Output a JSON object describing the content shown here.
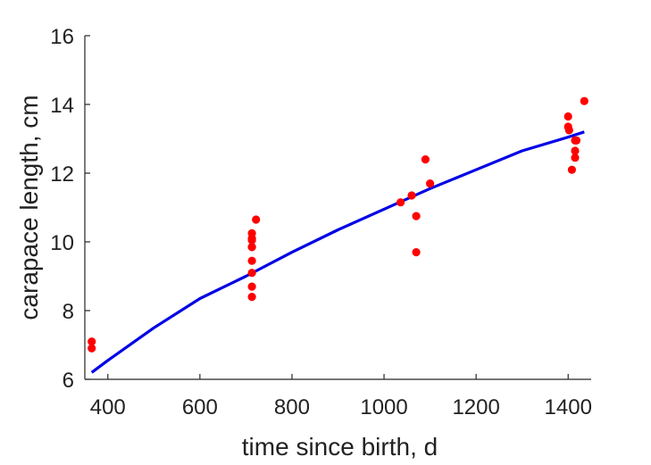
{
  "chart_data": {
    "type": "scatter",
    "title": "",
    "xlabel": "time since birth, d",
    "ylabel": "carapace length, cm",
    "xlim": [
      350,
      1450
    ],
    "ylim": [
      6,
      16
    ],
    "xticks": [
      400,
      600,
      800,
      1000,
      1200,
      1400
    ],
    "yticks": [
      6,
      8,
      10,
      12,
      14,
      16
    ],
    "grid": false,
    "colors": {
      "points": "#ff0000",
      "fit_line": "#0000e6",
      "axes": "#262626"
    },
    "series": [
      {
        "kind": "points",
        "x": [
          365,
          365,
          713,
          713,
          713,
          713,
          713,
          713,
          713,
          713,
          713,
          722,
          1036,
          1060,
          1070,
          1070,
          1090,
          1100,
          1400,
          1400,
          1402,
          1408,
          1415,
          1415,
          1415,
          1418,
          1435
        ],
        "y": [
          7.1,
          6.9,
          10.25,
          10.1,
          9.85,
          9.45,
          9.1,
          8.7,
          8.4,
          10.05,
          9.85,
          10.65,
          11.15,
          11.35,
          10.75,
          9.7,
          12.4,
          11.7,
          13.65,
          13.35,
          13.25,
          12.1,
          12.95,
          12.65,
          12.45,
          12.95,
          14.1
        ]
      },
      {
        "kind": "line",
        "x": [
          365,
          400,
          500,
          600,
          700,
          800,
          900,
          1000,
          1100,
          1200,
          1300,
          1400,
          1435
        ],
        "y": [
          6.2,
          6.55,
          7.5,
          8.35,
          9.0,
          9.7,
          10.35,
          10.95,
          11.55,
          12.1,
          12.65,
          13.05,
          13.2
        ]
      }
    ]
  }
}
